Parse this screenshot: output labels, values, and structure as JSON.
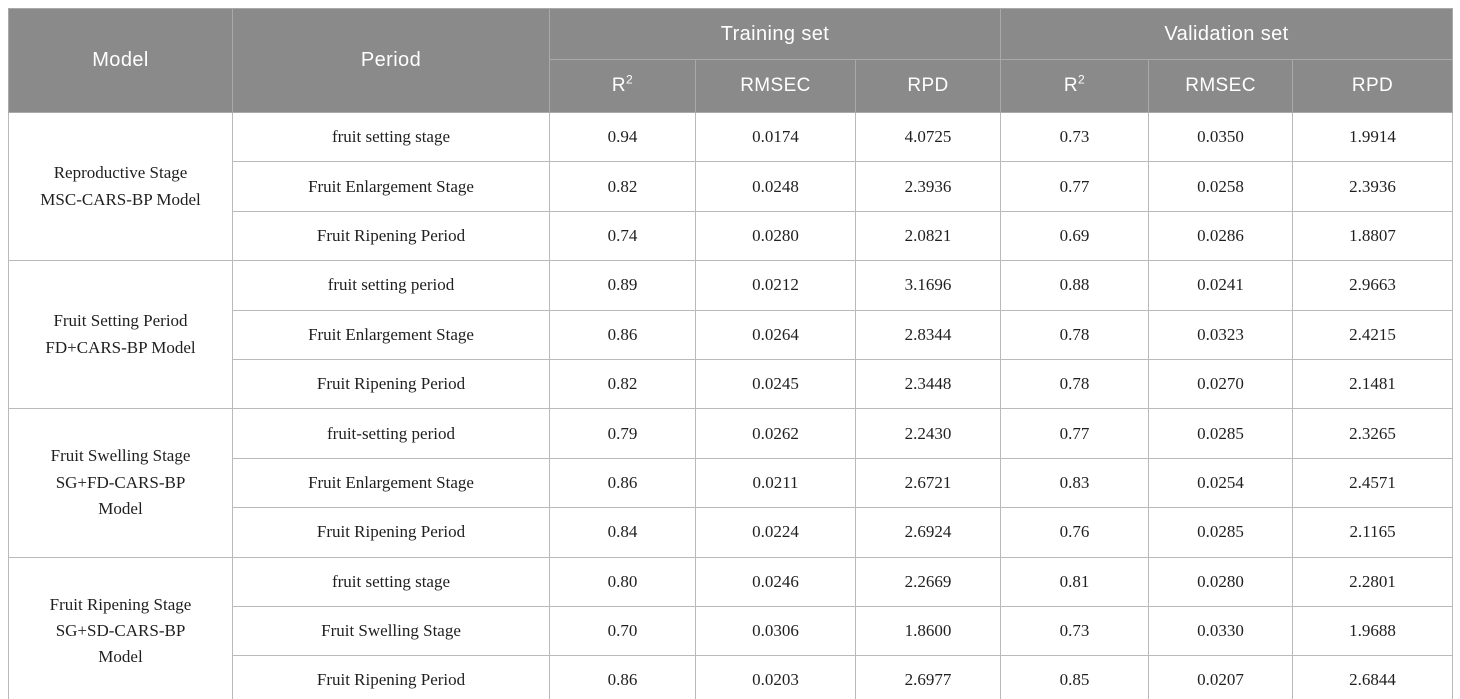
{
  "theme": {
    "header_bg": "#8a8a8a",
    "header_text": "#ffffff",
    "header_divider": "#a9a9a9",
    "body_border": "#b9b9b9",
    "body_text": "#1f1f1f"
  },
  "table": {
    "header": {
      "model_label": "Model",
      "period_label": "Period",
      "training_label": "Training set",
      "validation_label": "Validation set",
      "r2_base": "R",
      "r2_sup": "2",
      "rmsec_label": "RMSEC",
      "rpd_label": "RPD"
    },
    "groups": [
      {
        "model_lines": [
          "Reproductive Stage",
          "MSC-CARS-BP Model"
        ],
        "rows": [
          {
            "period": "fruit setting stage",
            "training": {
              "r2": "0.94",
              "rmsec": "0.0174",
              "rpd": "4.0725"
            },
            "validation": {
              "r2": "0.73",
              "rmsec": "0.0350",
              "rpd": "1.9914"
            }
          },
          {
            "period": "Fruit Enlargement Stage",
            "training": {
              "r2": "0.82",
              "rmsec": "0.0248",
              "rpd": "2.3936"
            },
            "validation": {
              "r2": "0.77",
              "rmsec": "0.0258",
              "rpd": "2.3936"
            }
          },
          {
            "period": "Fruit Ripening Period",
            "training": {
              "r2": "0.74",
              "rmsec": "0.0280",
              "rpd": "2.0821"
            },
            "validation": {
              "r2": "0.69",
              "rmsec": "0.0286",
              "rpd": "1.8807"
            }
          }
        ]
      },
      {
        "model_lines": [
          "Fruit Setting Period",
          "FD+CARS-BP Model"
        ],
        "rows": [
          {
            "period": "fruit setting period",
            "training": {
              "r2": "0.89",
              "rmsec": "0.0212",
              "rpd": "3.1696"
            },
            "validation": {
              "r2": "0.88",
              "rmsec": "0.0241",
              "rpd": "2.9663"
            }
          },
          {
            "period": "Fruit Enlargement Stage",
            "training": {
              "r2": "0.86",
              "rmsec": "0.0264",
              "rpd": "2.8344"
            },
            "validation": {
              "r2": "0.78",
              "rmsec": "0.0323",
              "rpd": "2.4215"
            }
          },
          {
            "period": "Fruit Ripening Period",
            "training": {
              "r2": "0.82",
              "rmsec": "0.0245",
              "rpd": "2.3448"
            },
            "validation": {
              "r2": "0.78",
              "rmsec": "0.0270",
              "rpd": "2.1481"
            }
          }
        ]
      },
      {
        "model_lines": [
          "Fruit Swelling Stage",
          "SG+FD-CARS-BP",
          "Model"
        ],
        "rows": [
          {
            "period": "fruit-setting period",
            "training": {
              "r2": "0.79",
              "rmsec": "0.0262",
              "rpd": "2.2430"
            },
            "validation": {
              "r2": "0.77",
              "rmsec": "0.0285",
              "rpd": "2.3265"
            }
          },
          {
            "period": "Fruit Enlargement Stage",
            "training": {
              "r2": "0.86",
              "rmsec": "0.0211",
              "rpd": "2.6721"
            },
            "validation": {
              "r2": "0.83",
              "rmsec": "0.0254",
              "rpd": "2.4571"
            }
          },
          {
            "period": "Fruit Ripening Period",
            "training": {
              "r2": "0.84",
              "rmsec": "0.0224",
              "rpd": "2.6924"
            },
            "validation": {
              "r2": "0.76",
              "rmsec": "0.0285",
              "rpd": "2.1165"
            }
          }
        ]
      },
      {
        "model_lines": [
          "Fruit Ripening Stage",
          "SG+SD-CARS-BP",
          "Model"
        ],
        "rows": [
          {
            "period": "fruit setting stage",
            "training": {
              "r2": "0.80",
              "rmsec": "0.0246",
              "rpd": "2.2669"
            },
            "validation": {
              "r2": "0.81",
              "rmsec": "0.0280",
              "rpd": "2.2801"
            }
          },
          {
            "period": "Fruit Swelling Stage",
            "training": {
              "r2": "0.70",
              "rmsec": "0.0306",
              "rpd": "1.8600"
            },
            "validation": {
              "r2": "0.73",
              "rmsec": "0.0330",
              "rpd": "1.9688"
            }
          },
          {
            "period": "Fruit Ripening Period",
            "training": {
              "r2": "0.86",
              "rmsec": "0.0203",
              "rpd": "2.6977"
            },
            "validation": {
              "r2": "0.85",
              "rmsec": "0.0207",
              "rpd": "2.6844"
            }
          }
        ]
      }
    ]
  }
}
